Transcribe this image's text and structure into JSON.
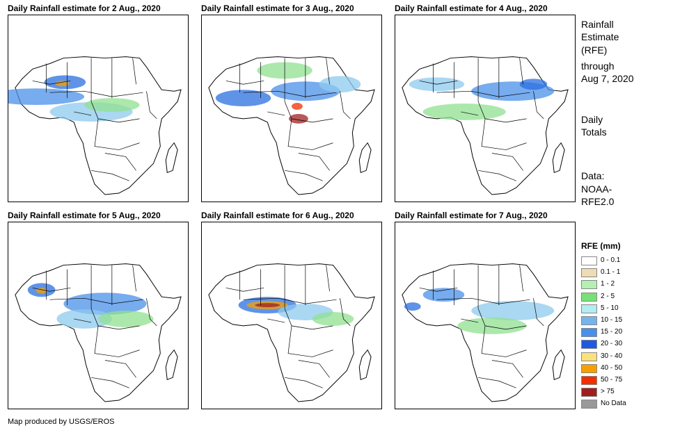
{
  "panels": [
    {
      "title": "Daily Rainfall estimate for 2 Aug., 2020",
      "rain": [
        [
          "#2a6fe0",
          "82,97,30,10"
        ],
        [
          "#4a90e8",
          "40,118,70,12"
        ],
        [
          "#8ec9ee",
          "120,140,60,14"
        ],
        [
          "#90e090",
          "150,130,40,10"
        ],
        [
          "#f5a000",
          "78,99,10,4"
        ]
      ]
    },
    {
      "title": "Daily Rainfall estimate for 3 Aug., 2020",
      "rain": [
        [
          "#2a6fe0",
          "60,120,40,12"
        ],
        [
          "#4a90e8",
          "150,110,50,14"
        ],
        [
          "#a02020",
          "140,150,14,7"
        ],
        [
          "#f03000",
          "138,132,8,5"
        ],
        [
          "#8ec9ee",
          "200,100,30,12"
        ],
        [
          "#90e090",
          "120,80,40,12"
        ]
      ]
    },
    {
      "title": "Daily Rainfall estimate for 4 Aug., 2020",
      "rain": [
        [
          "#4a90e8",
          "170,110,60,14"
        ],
        [
          "#2a6fe0",
          "200,100,20,8"
        ],
        [
          "#90e090",
          "100,140,60,12"
        ],
        [
          "#8ec9ee",
          "60,100,40,10"
        ]
      ]
    },
    {
      "title": "Daily Rainfall estimate for 5 Aug., 2020",
      "rain": [
        [
          "#2a6fe0",
          "48,98,20,10"
        ],
        [
          "#f5a000",
          "48,99,8,4"
        ],
        [
          "#4a90e8",
          "140,118,60,16"
        ],
        [
          "#8ec9ee",
          "110,140,40,14"
        ],
        [
          "#90e090",
          "170,140,40,12"
        ]
      ]
    },
    {
      "title": "Daily Rainfall estimate for 6 Aug., 2020",
      "rain": [
        [
          "#2a6fe0",
          "95,120,42,12"
        ],
        [
          "#f5a000",
          "95,120,30,6"
        ],
        [
          "#a02020",
          "95,120,18,3"
        ],
        [
          "#8ec9ee",
          "150,130,40,12"
        ],
        [
          "#90e090",
          "190,140,30,10"
        ]
      ]
    },
    {
      "title": "Daily Rainfall estimate for 7 Aug., 2020",
      "rain": [
        [
          "#4a90e8",
          "70,105,30,10"
        ],
        [
          "#2a6fe0",
          "25,122,12,6"
        ],
        [
          "#8ec9ee",
          "170,128,60,14"
        ],
        [
          "#90e090",
          "140,150,50,12"
        ]
      ]
    }
  ],
  "side": {
    "title1": "Rainfall",
    "title2": "Estimate",
    "title3": "(RFE)",
    "through1": "through",
    "through2": "Aug 7, 2020",
    "daily1": "Daily",
    "daily2": "Totals",
    "data1": "Data:",
    "data2": "NOAA-",
    "data3": "RFE2.0"
  },
  "legend": {
    "title": "RFE (mm)",
    "items": [
      {
        "label": "0 - 0.1",
        "color": "#ffffff"
      },
      {
        "label": "0.1 - 1",
        "color": "#eedcb4"
      },
      {
        "label": "1 - 2",
        "color": "#b4f0b4"
      },
      {
        "label": "2 - 5",
        "color": "#78e078"
      },
      {
        "label": "5 - 10",
        "color": "#b4ecf4"
      },
      {
        "label": "10 - 15",
        "color": "#78b4ec"
      },
      {
        "label": "15 - 20",
        "color": "#4a90e8"
      },
      {
        "label": "20 - 30",
        "color": "#1e5ae0"
      },
      {
        "label": "30 - 40",
        "color": "#fae17a"
      },
      {
        "label": "40 - 50",
        "color": "#f5a000"
      },
      {
        "label": "50 - 75",
        "color": "#f03000"
      },
      {
        "label": "> 75",
        "color": "#a01e1e"
      },
      {
        "label": "No Data",
        "color": "#999999"
      }
    ]
  },
  "credit": "Map produced by USGS/EROS"
}
